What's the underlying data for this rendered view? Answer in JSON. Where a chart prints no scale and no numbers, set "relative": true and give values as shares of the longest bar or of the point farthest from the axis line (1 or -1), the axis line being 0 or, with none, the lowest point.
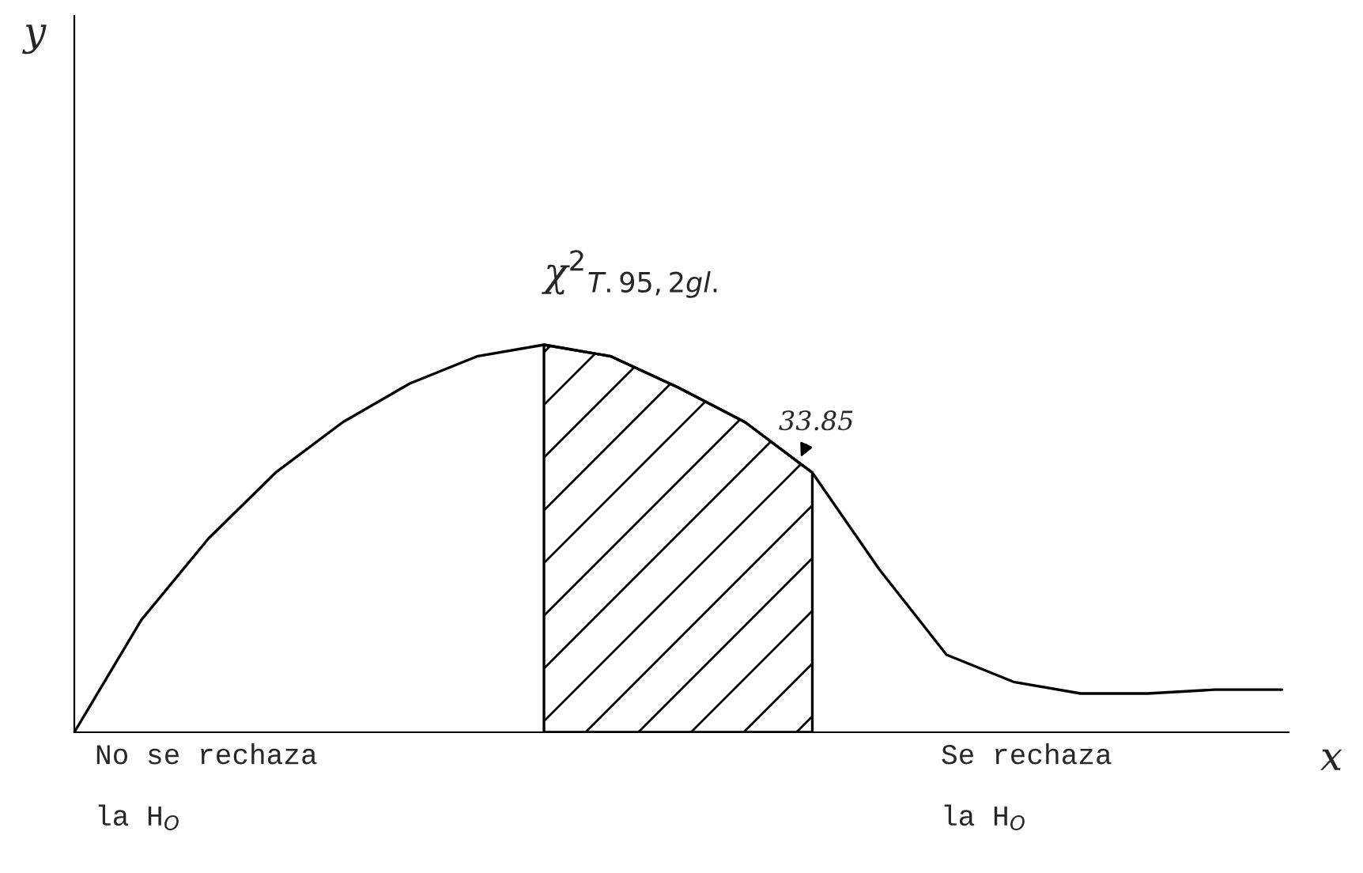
{
  "chart_data": {
    "type": "line",
    "relative": true,
    "xlabel": "x",
    "categories": [
      null,
      null,
      null,
      null,
      null,
      null,
      null,
      null,
      null,
      null,
      null,
      null,
      null,
      null,
      null,
      null,
      null,
      null,
      null
    ],
    "series": [
      {
        "color": "#000000",
        "values": [
          0,
          0.29,
          0.5,
          0.67,
          0.8,
          0.9,
          0.97,
          1.0,
          0.97,
          0.89,
          0.8,
          0.67,
          0.42,
          0.2,
          0.13,
          0.1,
          0.1,
          0.11,
          0.11
        ]
      },
      {
        "type": "area",
        "color": "#000000",
        "values": [
          null,
          null,
          null,
          null,
          null,
          null,
          null,
          1.0,
          0.97,
          0.89,
          0.8,
          0.67,
          null,
          null,
          null,
          null,
          null,
          null,
          null
        ]
      }
    ],
    "annotations": [
      "χ$^{2}$$_{T.95,2gl.}$",
      "33.85",
      "No se rechaza\n\nla H$_{O}$",
      "Se rechaza\n\nla H$_{O}$",
      "y"
    ],
    "marker": "none"
  }
}
